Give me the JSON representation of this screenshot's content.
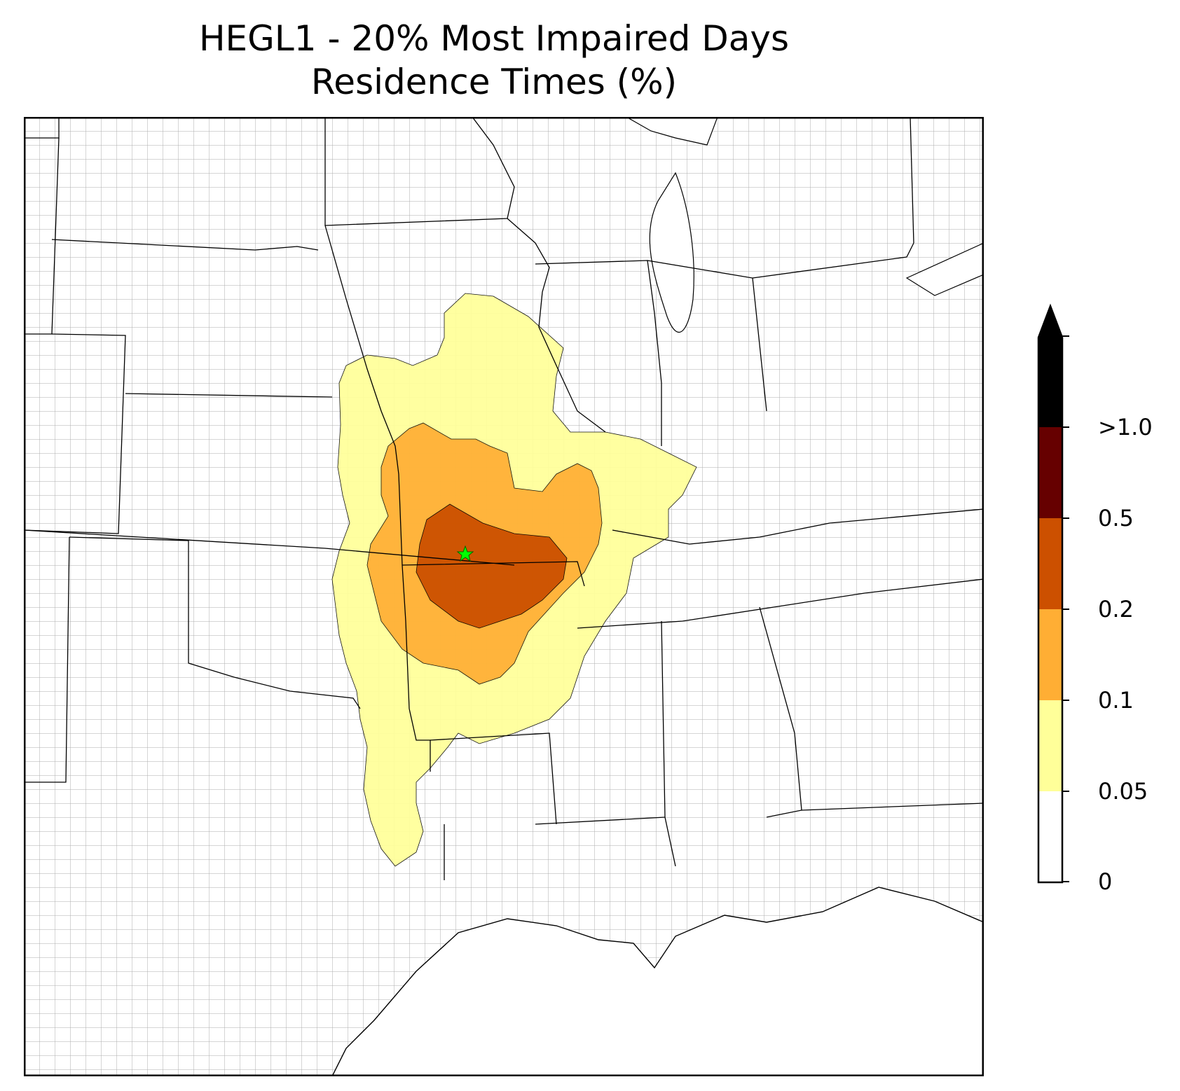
{
  "title": {
    "line1": "HEGL1 - 20% Most Impaired Days",
    "line2": "Residence Times (%)"
  },
  "colorbar": {
    "tick_labels": [
      "0",
      "0.05",
      "0.1",
      "0.2",
      "0.5",
      ">1.0"
    ],
    "levels": [
      0,
      0.05,
      0.1,
      0.2,
      0.5,
      1.0
    ],
    "colors": [
      "#ffffff",
      "#ffff99",
      "#ffae34",
      "#cc5000",
      "#660000",
      "#000000"
    ],
    "extend": "max"
  },
  "map": {
    "receptor_marker": "green-star",
    "receptor_color": "#00ff00",
    "contour_colors": {
      "lowest": "#ffff99",
      "low": "#ffae34",
      "mid": "#cc5000"
    }
  }
}
